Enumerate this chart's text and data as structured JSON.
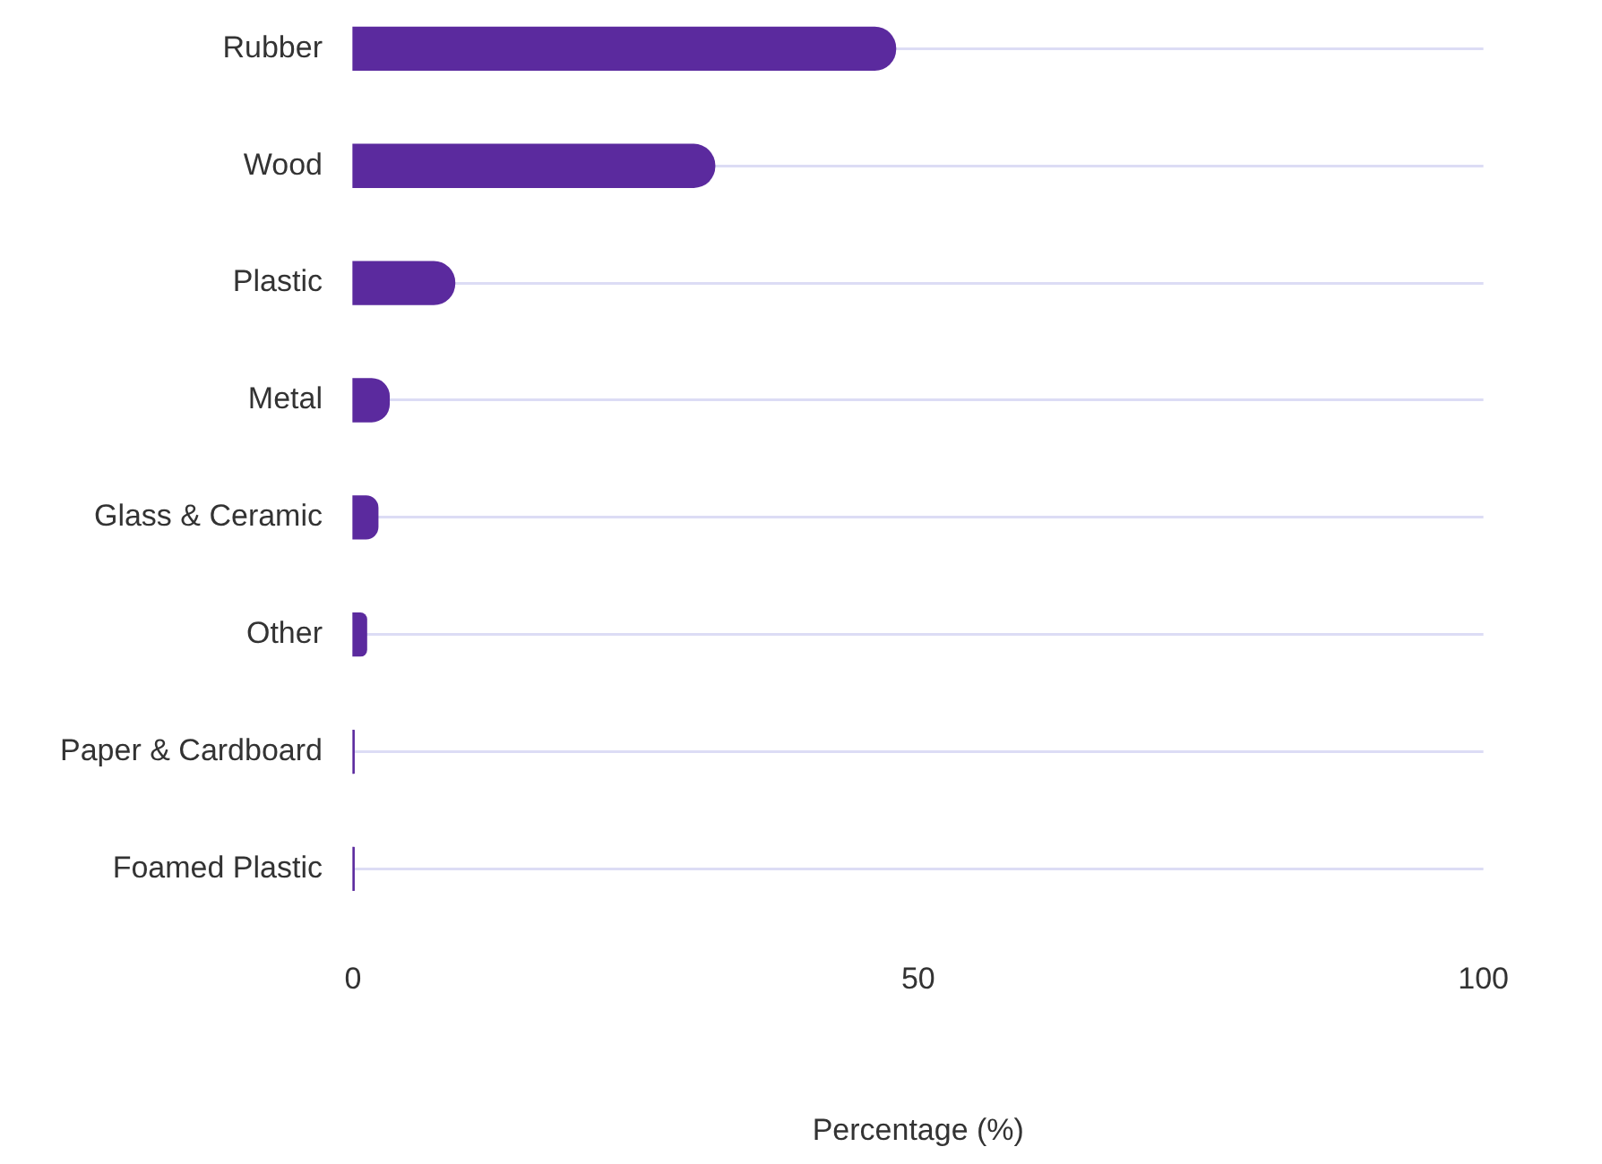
{
  "chart_data": {
    "type": "bar",
    "orientation": "horizontal",
    "xlabel": "Percentage (%)",
    "categories": [
      "Rubber",
      "Wood",
      "Plastic",
      "Metal",
      "Glass & Ceramic",
      "Other",
      "Paper & Cardboard",
      "Foamed Plastic"
    ],
    "values": [
      48,
      32,
      9,
      3.2,
      2.2,
      1.2,
      0.1,
      0.1
    ],
    "color": "#5b2a9e",
    "xlim": [
      0,
      100
    ],
    "xticks": [
      0,
      50,
      100
    ],
    "grid": "y",
    "legend": false
  }
}
